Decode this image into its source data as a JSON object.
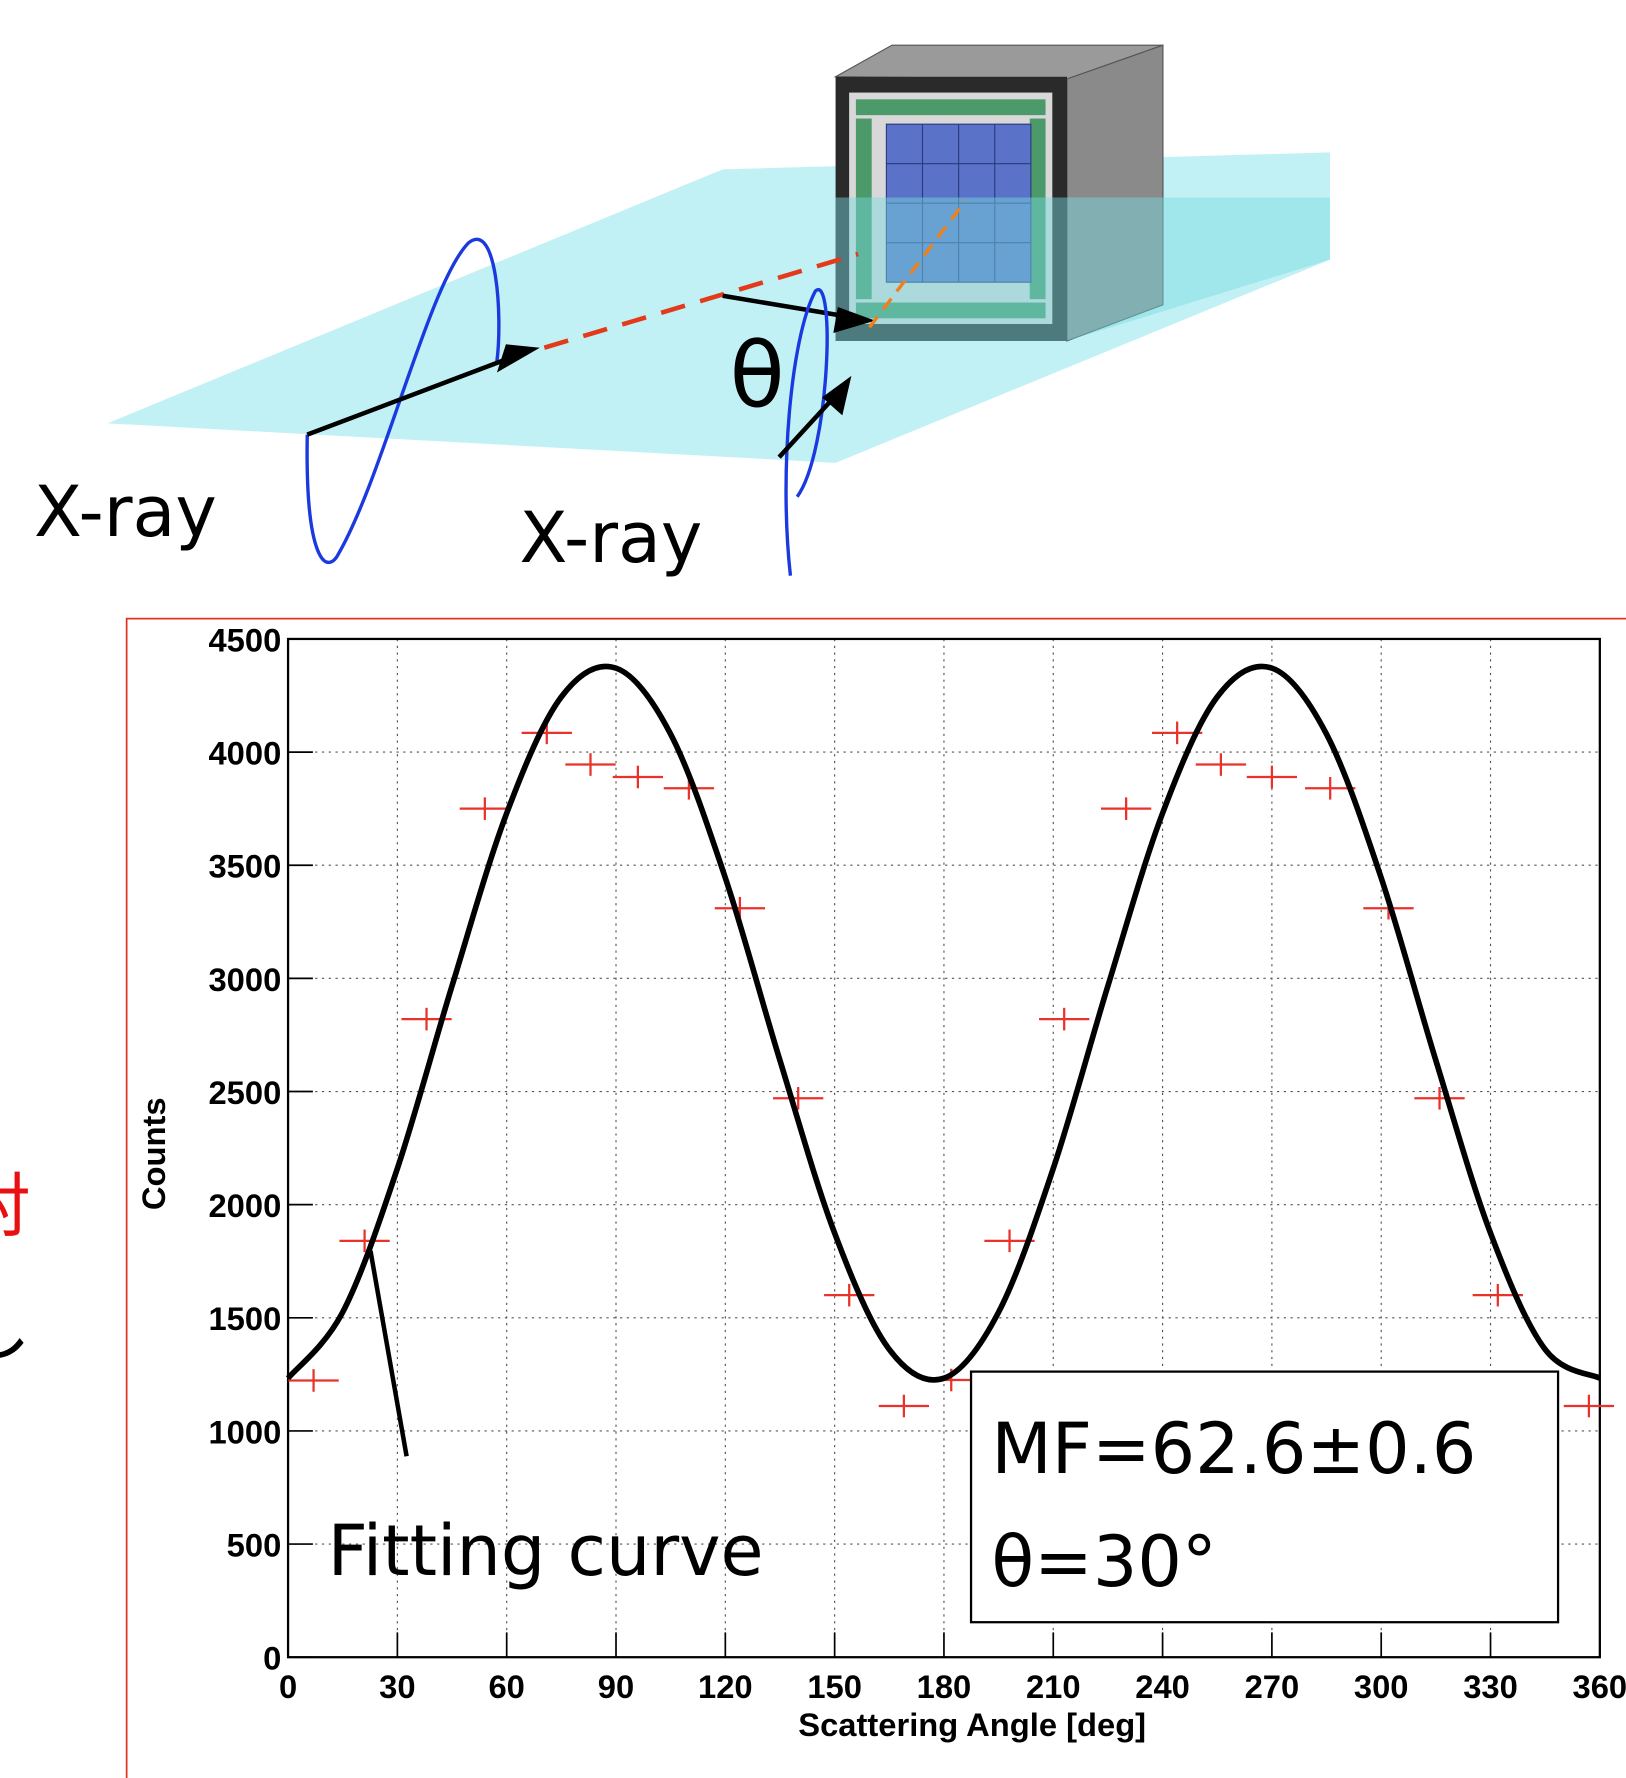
{
  "diagram": {
    "xray_left": "X-ray",
    "xray_right": "X-ray",
    "theta": "θ"
  },
  "side_text": [
    "対",
    "し"
  ],
  "chart_data": {
    "type": "scatter",
    "x_label": "Scattering Angle [deg]",
    "y_label": "Counts",
    "annotations": {
      "fit_label": "Fitting curve",
      "mf": "MF=62.6±0.6",
      "angle": "θ=30°"
    },
    "xlim": [
      0,
      360
    ],
    "ylim": [
      0,
      4500
    ],
    "xticks": [
      0,
      30,
      60,
      90,
      120,
      150,
      180,
      210,
      240,
      270,
      300,
      330,
      360
    ],
    "yticks": [
      0,
      500,
      1000,
      1500,
      2000,
      2500,
      3000,
      3500,
      4000,
      4500
    ],
    "grid": true,
    "points": {
      "color": "#e8322a",
      "xerr": 6.9,
      "x": [
        7,
        21,
        38,
        54,
        71,
        83,
        96,
        110,
        124,
        140,
        154,
        169,
        182,
        198,
        213,
        230,
        244,
        256,
        270,
        286,
        302,
        316,
        332,
        357
      ],
      "values": [
        1223,
        1840,
        2820,
        3750,
        4085,
        3945,
        3890,
        3840,
        3310,
        2470,
        1600,
        1110,
        1225,
        1840,
        2820,
        3750,
        4085,
        3945,
        3890,
        3840,
        3310,
        2470,
        1600,
        1110
      ]
    },
    "fit": {
      "color": "#000000",
      "x": [
        0,
        15,
        30,
        45,
        60,
        75,
        90,
        105,
        120,
        135,
        150,
        165,
        180,
        195,
        210,
        225,
        240,
        255,
        270,
        285,
        300,
        315,
        330,
        345,
        360
      ],
      "values": [
        1233,
        1525,
        2160,
        2967,
        3730,
        4244,
        4371,
        4079,
        3444,
        2637,
        1874,
        1360,
        1233,
        1525,
        2160,
        2967,
        3730,
        4244,
        4371,
        4079,
        3444,
        2637,
        1874,
        1360,
        1233
      ]
    }
  }
}
